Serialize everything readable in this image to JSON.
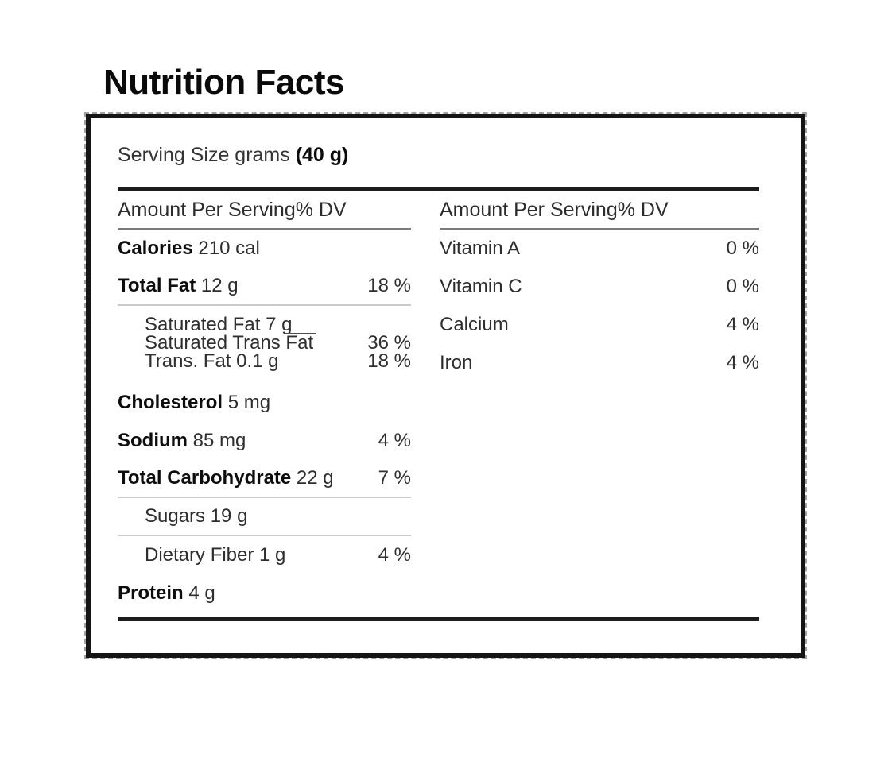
{
  "title": "Nutrition Facts",
  "serving": {
    "label": "Serving Size grams",
    "amount": "(40 g)"
  },
  "left_column": {
    "header": "Amount Per Serving% DV",
    "calories": {
      "name": "Calories",
      "value": " 210 cal",
      "dv": ""
    },
    "total_fat": {
      "name": "Total Fat",
      "value": " 12 g",
      "dv": "18 %"
    },
    "saturated_fat": {
      "text": "Saturated Fat 7 g",
      "dv": ""
    },
    "saturated_trans_fat": {
      "text": "Saturated Trans Fat",
      "dv": "36 %"
    },
    "trans_fat": {
      "text": "Trans. Fat 0.1 g",
      "dv": "18 %"
    },
    "cholesterol": {
      "name": "Cholesterol",
      "value": " 5 mg",
      "dv": ""
    },
    "sodium": {
      "name": "Sodium",
      "value": " 85 mg",
      "dv": "4 %"
    },
    "total_carbohydrate": {
      "name": "Total Carbohydrate",
      "value": " 22 g",
      "dv": "7 %"
    },
    "sugars": {
      "text": "Sugars 19 g",
      "dv": ""
    },
    "dietary_fiber": {
      "text": "Dietary Fiber 1 g",
      "dv": "4 %"
    },
    "protein": {
      "name": "Protein",
      "value": " 4 g",
      "dv": ""
    }
  },
  "right_column": {
    "header": "Amount Per Serving% DV",
    "rows": [
      {
        "name": "Vitamin A",
        "dv": "0 %"
      },
      {
        "name": "Vitamin C",
        "dv": "0 %"
      },
      {
        "name": "Calcium",
        "dv": "4 %"
      },
      {
        "name": "Iron",
        "dv": "4 %"
      }
    ]
  },
  "colors": {
    "text": "#2e2e2e",
    "bold_text": "#0d0d0d",
    "thick_rule": "#1c1c1c",
    "row_separator": "#cbcbcb",
    "header_underline": "#7b7b7b",
    "panel_border": "#151515"
  }
}
